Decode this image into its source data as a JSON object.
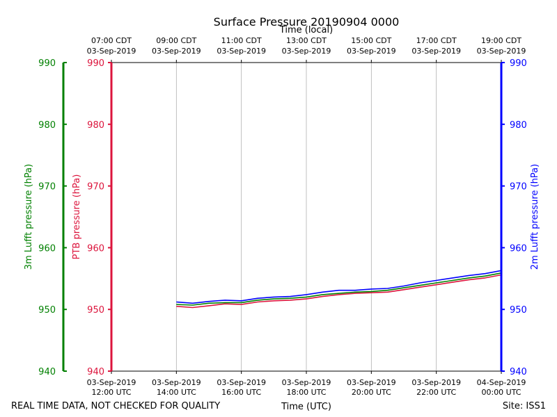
{
  "chart_data": {
    "type": "line",
    "title": "Surface Pressure 20190904 0000",
    "top_xlabel": "Time (local)",
    "xlabel": "Time (UTC)",
    "footer_left": "REAL TIME DATA, NOT CHECKED FOR QUALITY",
    "footer_right": "Site: ISS1",
    "x_range_hours_utc": [
      12,
      24
    ],
    "bottom_ticks": [
      {
        "hour": 12,
        "date": "03-Sep-2019",
        "time": "12:00 UTC"
      },
      {
        "hour": 14,
        "date": "03-Sep-2019",
        "time": "14:00 UTC"
      },
      {
        "hour": 16,
        "date": "03-Sep-2019",
        "time": "16:00 UTC"
      },
      {
        "hour": 18,
        "date": "03-Sep-2019",
        "time": "18:00 UTC"
      },
      {
        "hour": 20,
        "date": "03-Sep-2019",
        "time": "20:00 UTC"
      },
      {
        "hour": 22,
        "date": "03-Sep-2019",
        "time": "22:00 UTC"
      },
      {
        "hour": 24,
        "date": "04-Sep-2019",
        "time": "00:00 UTC"
      }
    ],
    "top_ticks": [
      {
        "hour": 12,
        "time": "07:00 CDT",
        "date": "03-Sep-2019"
      },
      {
        "hour": 14,
        "time": "09:00 CDT",
        "date": "03-Sep-2019"
      },
      {
        "hour": 16,
        "time": "11:00 CDT",
        "date": "03-Sep-2019"
      },
      {
        "hour": 18,
        "time": "13:00 CDT",
        "date": "03-Sep-2019"
      },
      {
        "hour": 20,
        "time": "15:00 CDT",
        "date": "03-Sep-2019"
      },
      {
        "hour": 22,
        "time": "17:00 CDT",
        "date": "03-Sep-2019"
      },
      {
        "hour": 24,
        "time": "19:00 CDT",
        "date": "03-Sep-2019"
      }
    ],
    "y_axes": [
      {
        "name": "lufft3m",
        "label": "3m Lufft pressure (hPa)",
        "color": "#008000",
        "ylim": [
          940,
          990
        ],
        "ticks": [
          940,
          950,
          960,
          970,
          980,
          990
        ]
      },
      {
        "name": "ptb",
        "label": "PTB pressure (hPa)",
        "color": "#dc143c",
        "ylim": [
          940,
          990
        ],
        "ticks": [
          940,
          950,
          960,
          970,
          980,
          990
        ]
      },
      {
        "name": "lufft2m",
        "label": "2m Lufft pressure (hPa)",
        "color": "#0000ff",
        "ylim": [
          940,
          990
        ],
        "ticks": [
          940,
          950,
          960,
          970,
          980,
          990
        ]
      }
    ],
    "series": [
      {
        "name": "PTB pressure",
        "color": "#dc143c",
        "x_hours_utc": [
          14.0,
          14.5,
          15.0,
          15.5,
          16.0,
          16.5,
          17.0,
          17.5,
          18.0,
          18.5,
          19.0,
          19.5,
          20.0,
          20.5,
          21.0,
          21.5,
          22.0,
          22.5,
          23.0,
          23.5,
          24.0
        ],
        "values": [
          950.5,
          950.3,
          950.6,
          950.9,
          950.8,
          951.2,
          951.4,
          951.5,
          951.7,
          952.1,
          952.4,
          952.6,
          952.7,
          952.8,
          953.2,
          953.6,
          954.0,
          954.4,
          954.8,
          955.1,
          955.6
        ]
      },
      {
        "name": "3m Lufft pressure",
        "color": "#008000",
        "x_hours_utc": [
          14.0,
          14.5,
          15.0,
          15.5,
          16.0,
          16.5,
          17.0,
          17.5,
          18.0,
          18.5,
          19.0,
          19.5,
          20.0,
          20.5,
          21.0,
          21.5,
          22.0,
          22.5,
          23.0,
          23.5,
          24.0
        ],
        "values": [
          950.8,
          950.7,
          951.0,
          951.1,
          951.1,
          951.5,
          951.7,
          951.8,
          952.0,
          952.4,
          952.6,
          952.8,
          952.9,
          953.1,
          953.5,
          953.9,
          954.3,
          954.7,
          955.1,
          955.4,
          955.9
        ]
      },
      {
        "name": "2m Lufft pressure",
        "color": "#0000ff",
        "x_hours_utc": [
          14.0,
          14.5,
          15.0,
          15.5,
          16.0,
          16.5,
          17.0,
          17.5,
          18.0,
          18.5,
          19.0,
          19.5,
          20.0,
          20.5,
          21.0,
          21.5,
          22.0,
          22.5,
          23.0,
          23.5,
          24.0
        ],
        "values": [
          951.2,
          951.0,
          951.3,
          951.5,
          951.4,
          951.8,
          952.0,
          952.1,
          952.4,
          952.8,
          953.1,
          953.1,
          953.3,
          953.4,
          953.8,
          954.3,
          954.7,
          955.1,
          955.5,
          955.8,
          956.3
        ]
      }
    ]
  }
}
